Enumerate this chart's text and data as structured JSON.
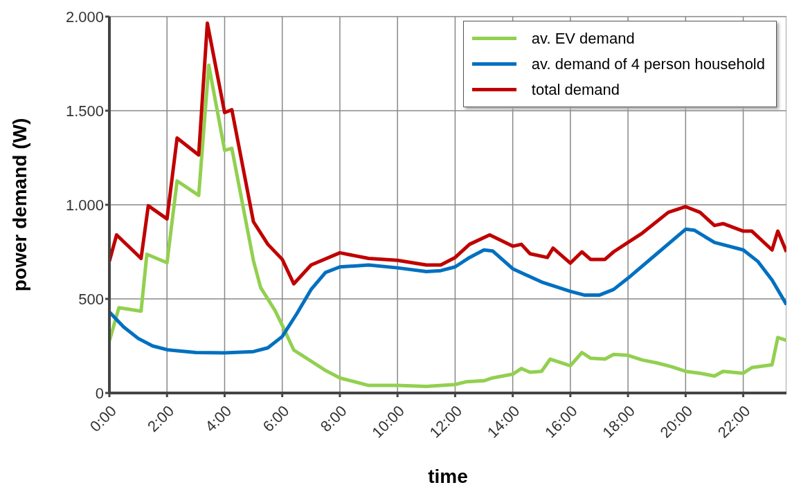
{
  "chart_data": {
    "type": "line",
    "xlabel": "time",
    "ylabel": "power demand (W)",
    "xlim": [
      0,
      23.5
    ],
    "xticks": [
      {
        "value": 0,
        "label": "0:00"
      },
      {
        "value": 2,
        "label": "2:00"
      },
      {
        "value": 4,
        "label": "4:00"
      },
      {
        "value": 6,
        "label": "6:00"
      },
      {
        "value": 8,
        "label": "8:00"
      },
      {
        "value": 10,
        "label": "10:00"
      },
      {
        "value": 12,
        "label": "12:00"
      },
      {
        "value": 14,
        "label": "14:00"
      },
      {
        "value": 16,
        "label": "16:00"
      },
      {
        "value": 18,
        "label": "18:00"
      },
      {
        "value": 20,
        "label": "20:00"
      },
      {
        "value": 22,
        "label": "22:00"
      }
    ],
    "ylim": [
      0,
      2000
    ],
    "yticks": [
      0,
      500,
      {
        "value": 1000,
        "label": "1.000"
      },
      {
        "value": 1500,
        "label": "1.500"
      },
      {
        "value": 2000,
        "label": "2.000"
      }
    ],
    "grid": true,
    "legend": "top right",
    "line_style": "solid",
    "series": [
      {
        "name": "av. EV demand",
        "color": "#92d050",
        "x": [
          0,
          0.33,
          1.1,
          1.3,
          2.0,
          2.35,
          3.1,
          3.45,
          4.0,
          4.25,
          5.0,
          5.25,
          5.75,
          6.0,
          6.4,
          7.5,
          8,
          9,
          10,
          11,
          12,
          12.4,
          13,
          13.3,
          14,
          14.3,
          14.6,
          15,
          15.3,
          16,
          16.4,
          16.7,
          17.2,
          17.5,
          18,
          18.5,
          19,
          19.5,
          20,
          20.5,
          21,
          21.3,
          22,
          22.3,
          23,
          23.2,
          23.5
        ],
        "values": [
          276,
          453,
          435,
          737,
          692,
          1127,
          1050,
          1742,
          1289,
          1300,
          703,
          560,
          438,
          360,
          228,
          120,
          80,
          40,
          40,
          35,
          45,
          60,
          65,
          80,
          100,
          130,
          110,
          115,
          180,
          145,
          215,
          185,
          180,
          205,
          200,
          175,
          160,
          140,
          115,
          105,
          90,
          115,
          105,
          135,
          150,
          295,
          280
        ]
      },
      {
        "name": "av. demand of 4 person household",
        "color": "#0070c0",
        "x": [
          0,
          0.5,
          1,
          1.5,
          2,
          3,
          4,
          5,
          5.5,
          6,
          6.5,
          7,
          7.5,
          8,
          9,
          10,
          11,
          11.5,
          12,
          12.5,
          13,
          13.3,
          14,
          15,
          16,
          16.5,
          17,
          17.5,
          18,
          19,
          20,
          20.3,
          21,
          22,
          22.5,
          23,
          23.5
        ],
        "values": [
          430,
          350,
          290,
          250,
          230,
          215,
          213,
          220,
          240,
          300,
          420,
          550,
          640,
          670,
          680,
          665,
          645,
          650,
          670,
          720,
          760,
          755,
          660,
          590,
          540,
          520,
          520,
          550,
          610,
          740,
          870,
          865,
          800,
          760,
          700,
          600,
          470
        ]
      },
      {
        "name": "total demand",
        "color": "#c00000",
        "x": [
          0,
          0.25,
          1.1,
          1.35,
          2.0,
          2.35,
          3.1,
          3.4,
          4.0,
          4.25,
          5.0,
          5.5,
          6.0,
          6.4,
          7,
          8,
          9,
          10,
          11,
          11.5,
          12,
          12.5,
          13.2,
          14,
          14.3,
          14.6,
          15.2,
          15.4,
          16,
          16.4,
          16.7,
          17.2,
          17.5,
          18,
          18.5,
          19.4,
          20,
          20.5,
          21,
          21.3,
          22,
          22.3,
          23,
          23.2,
          23.5
        ],
        "values": [
          700,
          840,
          715,
          995,
          925,
          1355,
          1265,
          1965,
          1490,
          1505,
          910,
          790,
          710,
          580,
          680,
          745,
          715,
          705,
          680,
          680,
          720,
          790,
          840,
          780,
          790,
          740,
          720,
          770,
          690,
          750,
          710,
          710,
          750,
          800,
          850,
          960,
          990,
          960,
          890,
          900,
          860,
          860,
          760,
          860,
          750
        ]
      }
    ]
  }
}
